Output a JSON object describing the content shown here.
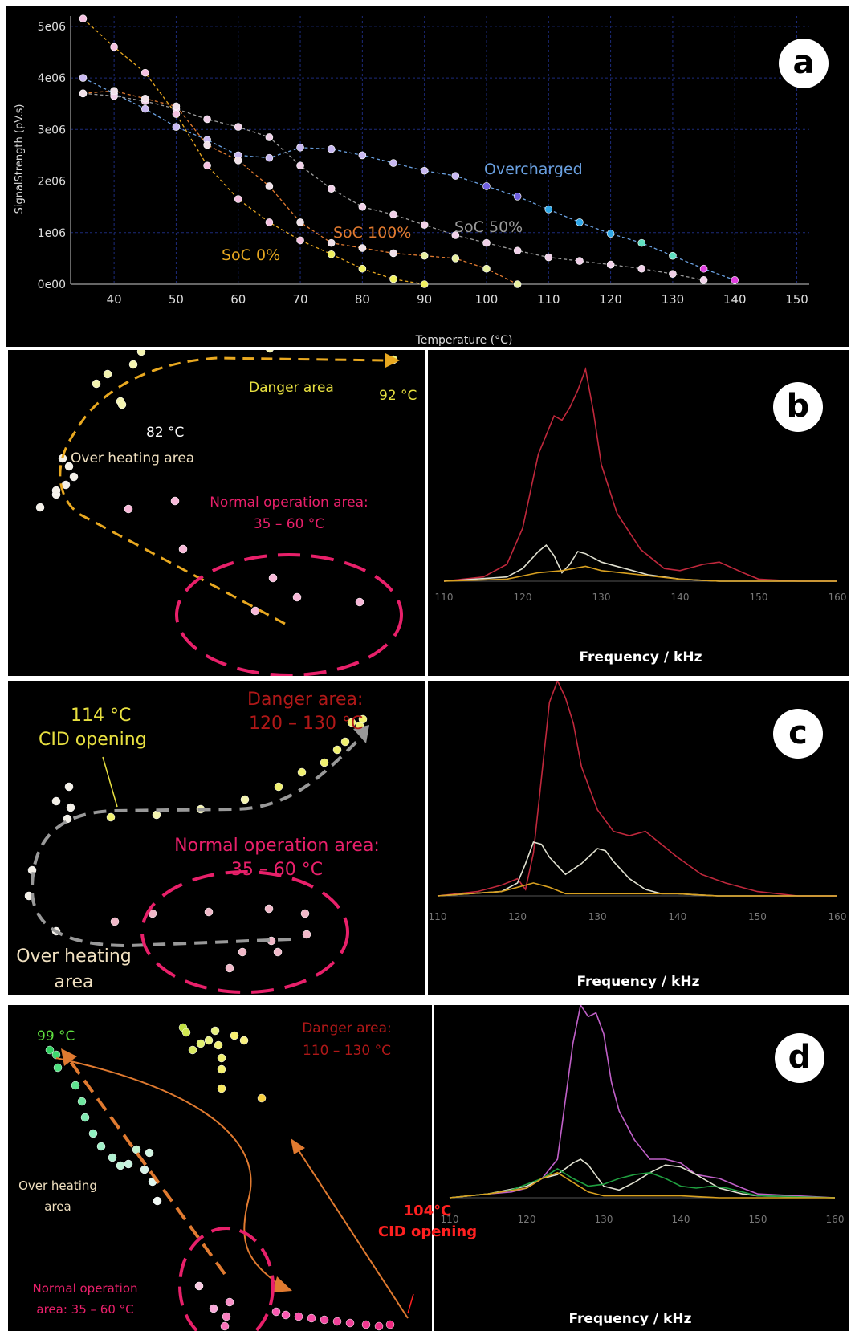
{
  "panel_a": {
    "badge": "a",
    "xlabel": "Temperature (°C)",
    "ylabel": "SignalStrength (pV.s)",
    "xticks": [
      "40",
      "50",
      "60",
      "70",
      "80",
      "90",
      "100",
      "110",
      "120",
      "130",
      "140",
      "150"
    ],
    "yticks": [
      "0e00",
      "1e06",
      "2e06",
      "3e06",
      "4e06",
      "5e06"
    ],
    "labels": {
      "overcharged": "Overcharged",
      "soc50": "SoC 50%",
      "soc100": "SoC 100%",
      "soc0": "SoC 0%"
    },
    "colors": {
      "overcharged": "#6aa0e0",
      "soc50": "#9a9a9a",
      "soc100": "#e07a30",
      "soc0": "#e8a820"
    }
  },
  "panel_b": {
    "badge": "b",
    "danger": "Danger area",
    "temp_92": "92 °C",
    "temp_82": "82 °C",
    "overheat": "Over heating area",
    "normal_1": "Normal operation area:",
    "normal_2": "35 – 60 °C",
    "xlabel": "Frequency / kHz",
    "xticks": [
      "110",
      "120",
      "130",
      "140",
      "150",
      "160"
    ]
  },
  "panel_c": {
    "badge": "c",
    "temp": "114 °C",
    "cid": "CID opening",
    "danger_1": "Danger area:",
    "danger_2": "120 – 130 °C",
    "normal_1": "Normal operation area:",
    "normal_2": "35 – 60 °C",
    "overheat_1": "Over heating",
    "overheat_2": "area",
    "xlabel": "Frequency / kHz",
    "xticks": [
      "110",
      "120",
      "130",
      "140",
      "150",
      "160"
    ]
  },
  "panel_d": {
    "badge": "d",
    "temp": "99 °C",
    "danger_1": "Danger area:",
    "danger_2": "110 – 130 °C",
    "overheat_1": "Over heating",
    "overheat_2": "area",
    "normal_1": "Normal operation",
    "normal_2": "area: 35 – 60 °C",
    "cid_1": "104°C",
    "cid_2": "CID opening",
    "xlabel": "Frequency / kHz",
    "xticks": [
      "110",
      "120",
      "130",
      "140",
      "150",
      "160"
    ]
  },
  "chart_data": [
    {
      "type": "scatter",
      "xlabel": "Temperature (°C)",
      "ylabel": "SignalStrength (pV.s)",
      "xlim": [
        33,
        152
      ],
      "ylim": [
        0,
        5200000
      ],
      "series": [
        {
          "name": "Overcharged",
          "x": [
            35,
            40,
            45,
            50,
            55,
            60,
            65,
            70,
            75,
            80,
            85,
            90,
            95,
            100,
            105,
            110,
            115,
            120,
            125,
            130,
            135,
            140
          ],
          "y": [
            4000000,
            3700000,
            3400000,
            3050000,
            2800000,
            2500000,
            2450000,
            2650000,
            2620000,
            2500000,
            2350000,
            2200000,
            2100000,
            1900000,
            1700000,
            1450000,
            1200000,
            980000,
            800000,
            550000,
            300000,
            80000
          ]
        },
        {
          "name": "SoC 50%",
          "x": [
            35,
            40,
            45,
            50,
            55,
            60,
            65,
            70,
            75,
            80,
            85,
            90,
            95,
            100,
            105,
            110,
            115,
            120,
            125,
            130,
            135
          ],
          "y": [
            3700000,
            3650000,
            3550000,
            3400000,
            3200000,
            3050000,
            2850000,
            2300000,
            1850000,
            1500000,
            1350000,
            1150000,
            950000,
            800000,
            650000,
            520000,
            450000,
            380000,
            300000,
            200000,
            80000
          ]
        },
        {
          "name": "SoC 100%",
          "x": [
            35,
            40,
            45,
            50,
            55,
            60,
            65,
            70,
            75,
            80,
            85,
            90,
            95,
            100,
            105
          ],
          "y": [
            3700000,
            3750000,
            3600000,
            3450000,
            2700000,
            2400000,
            1900000,
            1200000,
            800000,
            700000,
            600000,
            550000,
            500000,
            300000,
            0
          ]
        },
        {
          "name": "SoC 0%",
          "x": [
            35,
            40,
            45,
            50,
            55,
            60,
            65,
            70,
            75,
            80,
            85,
            90
          ],
          "y": [
            5150000,
            4600000,
            4100000,
            3300000,
            2300000,
            1650000,
            1200000,
            850000,
            580000,
            300000,
            100000,
            0
          ]
        }
      ]
    },
    {
      "type": "line",
      "xlabel": "Frequency / kHz",
      "xlim": [
        110,
        160
      ],
      "series": [
        {
          "color": "#c0283c",
          "x": [
            110,
            115,
            118,
            120,
            122,
            124,
            125,
            126,
            127,
            128,
            129,
            130,
            132,
            135,
            138,
            140,
            143,
            145,
            148,
            150,
            155,
            160
          ],
          "y": [
            0,
            0.02,
            0.08,
            0.25,
            0.6,
            0.78,
            0.76,
            0.82,
            0.9,
            1.0,
            0.8,
            0.55,
            0.32,
            0.15,
            0.06,
            0.05,
            0.08,
            0.09,
            0.04,
            0.01,
            0,
            0
          ]
        },
        {
          "color": "#e0e0d0",
          "x": [
            110,
            118,
            120,
            122,
            123,
            124,
            125,
            126,
            127,
            128,
            130,
            133,
            136,
            140,
            145,
            160
          ],
          "y": [
            0,
            0.02,
            0.06,
            0.14,
            0.17,
            0.12,
            0.04,
            0.08,
            0.14,
            0.13,
            0.09,
            0.06,
            0.03,
            0.01,
            0,
            0
          ]
        },
        {
          "color": "#d8a020",
          "x": [
            110,
            118,
            122,
            125,
            128,
            130,
            135,
            140,
            145,
            160
          ],
          "y": [
            0,
            0.01,
            0.04,
            0.05,
            0.07,
            0.05,
            0.03,
            0.01,
            0,
            0
          ]
        }
      ]
    },
    {
      "type": "line",
      "xlabel": "Frequency / kHz",
      "xlim": [
        110,
        160
      ],
      "series": [
        {
          "color": "#c0283c",
          "x": [
            110,
            115,
            118,
            120,
            121,
            122,
            123,
            124,
            125,
            126,
            127,
            128,
            130,
            132,
            134,
            136,
            138,
            140,
            143,
            146,
            150,
            155,
            160
          ],
          "y": [
            0,
            0.02,
            0.05,
            0.08,
            0.03,
            0.2,
            0.55,
            0.9,
            1.0,
            0.92,
            0.8,
            0.6,
            0.4,
            0.3,
            0.28,
            0.3,
            0.24,
            0.18,
            0.1,
            0.06,
            0.02,
            0,
            0
          ]
        },
        {
          "color": "#e0e0d0",
          "x": [
            110,
            118,
            120,
            121,
            122,
            123,
            124,
            126,
            128,
            130,
            131,
            132,
            134,
            136,
            138,
            140,
            145,
            160
          ],
          "y": [
            0,
            0.02,
            0.06,
            0.15,
            0.25,
            0.24,
            0.18,
            0.1,
            0.15,
            0.22,
            0.21,
            0.16,
            0.08,
            0.03,
            0.01,
            0.01,
            0,
            0
          ]
        },
        {
          "color": "#d8a020",
          "x": [
            110,
            118,
            120,
            122,
            124,
            126,
            130,
            135,
            140,
            145,
            160
          ],
          "y": [
            0,
            0.02,
            0.04,
            0.06,
            0.04,
            0.01,
            0.01,
            0.01,
            0.01,
            0,
            0
          ]
        }
      ]
    },
    {
      "type": "line",
      "xlabel": "Frequency / kHz",
      "xlim": [
        110,
        160
      ],
      "series": [
        {
          "color": "#c060c8",
          "x": [
            110,
            115,
            118,
            120,
            122,
            124,
            125,
            126,
            127,
            128,
            129,
            130,
            131,
            132,
            134,
            136,
            138,
            140,
            142,
            145,
            148,
            150,
            155,
            160
          ],
          "y": [
            0,
            0.02,
            0.03,
            0.05,
            0.1,
            0.2,
            0.5,
            0.8,
            1.0,
            0.94,
            0.96,
            0.85,
            0.6,
            0.45,
            0.3,
            0.2,
            0.2,
            0.18,
            0.12,
            0.1,
            0.05,
            0.02,
            0.01,
            0
          ]
        },
        {
          "color": "#e0e0d0",
          "x": [
            110,
            115,
            120,
            122,
            124,
            126,
            127,
            128,
            130,
            132,
            134,
            136,
            138,
            140,
            142,
            145,
            148,
            150,
            160
          ],
          "y": [
            0,
            0.02,
            0.06,
            0.1,
            0.12,
            0.18,
            0.2,
            0.17,
            0.06,
            0.04,
            0.08,
            0.13,
            0.17,
            0.16,
            0.12,
            0.05,
            0.02,
            0.01,
            0
          ]
        },
        {
          "color": "#20a040",
          "x": [
            110,
            115,
            118,
            120,
            122,
            124,
            126,
            128,
            130,
            132,
            134,
            136,
            138,
            140,
            142,
            144,
            146,
            148,
            150,
            160
          ],
          "y": [
            0,
            0.02,
            0.04,
            0.07,
            0.1,
            0.15,
            0.1,
            0.06,
            0.07,
            0.1,
            0.12,
            0.13,
            0.1,
            0.06,
            0.05,
            0.06,
            0.05,
            0.03,
            0.01,
            0
          ]
        },
        {
          "color": "#d8a020",
          "x": [
            110,
            115,
            120,
            122,
            124,
            126,
            128,
            130,
            135,
            140,
            145,
            160
          ],
          "y": [
            0,
            0.02,
            0.05,
            0.1,
            0.13,
            0.08,
            0.03,
            0.01,
            0.01,
            0.01,
            0,
            0
          ]
        }
      ]
    }
  ]
}
